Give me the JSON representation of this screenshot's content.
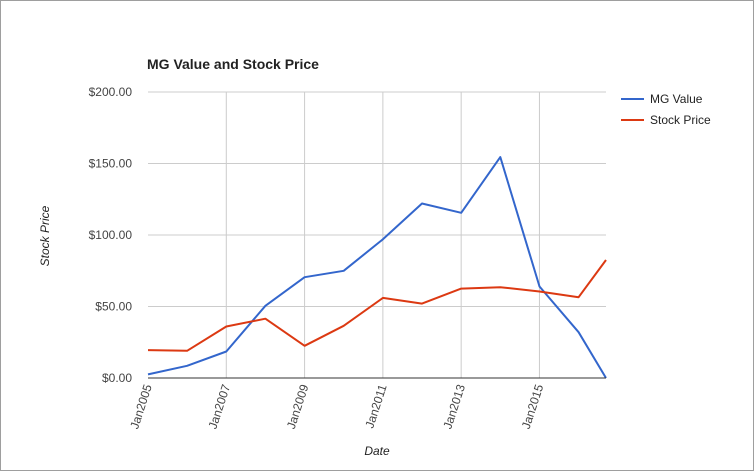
{
  "chart_data": {
    "type": "line",
    "title": "MG Value and Stock Price",
    "xlabel": "Date",
    "ylabel": "Stock Price",
    "x": [
      2005,
      2006,
      2007,
      2008,
      2009,
      2010,
      2011,
      2012,
      2013,
      2014,
      2015,
      2016,
      2017
    ],
    "x_tick_labels": [
      "Jan2005",
      "Jan2007",
      "Jan2009",
      "Jan2011",
      "Jan2013",
      "Jan2015"
    ],
    "x_tick_values": [
      2005,
      2007,
      2009,
      2011,
      2013,
      2015
    ],
    "y_tick_labels": [
      "$0.00",
      "$50.00",
      "$100.00",
      "$150.00",
      "$200.00"
    ],
    "y_tick_values": [
      0,
      50,
      100,
      150,
      200
    ],
    "ylim": [
      0,
      200
    ],
    "xlim": [
      2005,
      2016.7
    ],
    "grid": true,
    "legend_position": "right",
    "series": [
      {
        "name": "MG Value",
        "color": "#3366cc",
        "values": [
          2.5,
          8.5,
          18.5,
          50.5,
          70.5,
          75,
          97,
          122,
          115.5,
          154.5,
          64,
          32,
          0
        ]
      },
      {
        "name": "Stock Price",
        "color": "#dc3912",
        "values": [
          19.5,
          19,
          36,
          41.5,
          22.5,
          36.5,
          56,
          52,
          62.5,
          63.5,
          60.5,
          56.5,
          82.5
        ]
      }
    ]
  }
}
